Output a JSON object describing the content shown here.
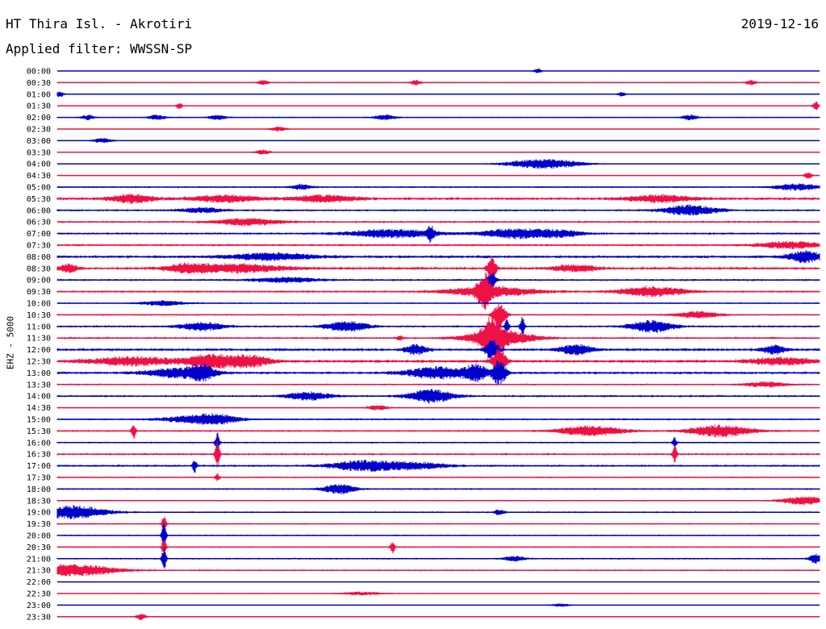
{
  "header": {
    "title": "HT Thira Isl. - Akrotiri",
    "date": "2019-12-16",
    "filter": "Applied filter: WWSSN-SP"
  },
  "chart_data": {
    "type": "line",
    "title": "HT Thira Isl. - Akrotiri",
    "subtitle": "Applied filter: WWSSN-SP",
    "ylabel": "EHZ - 5000",
    "xlabel": "",
    "colors": [
      "#0000cc",
      "#ee1144"
    ],
    "series": [
      {
        "label": "00:00",
        "noise": 0.3,
        "events": [
          {
            "x": 0.63,
            "amp": 3,
            "w": 0.004
          }
        ]
      },
      {
        "label": "00:30",
        "noise": 0.7,
        "events": [
          {
            "x": 0.27,
            "amp": 3,
            "w": 0.005
          },
          {
            "x": 0.47,
            "amp": 3,
            "w": 0.005
          },
          {
            "x": 0.91,
            "amp": 3,
            "w": 0.005
          }
        ]
      },
      {
        "label": "01:00",
        "noise": 0.3,
        "events": [
          {
            "x": 0.003,
            "amp": 4,
            "w": 0.004
          },
          {
            "x": 0.74,
            "amp": 3,
            "w": 0.004
          }
        ]
      },
      {
        "label": "01:30",
        "noise": 0.4,
        "events": [
          {
            "x": 0.16,
            "amp": 4,
            "w": 0.003
          },
          {
            "x": 0.995,
            "amp": 6,
            "w": 0.003
          }
        ]
      },
      {
        "label": "02:00",
        "noise": 0.9,
        "events": [
          {
            "x": 0.04,
            "amp": 3,
            "w": 0.006
          },
          {
            "x": 0.13,
            "amp": 3,
            "w": 0.008
          },
          {
            "x": 0.21,
            "amp": 3,
            "w": 0.008
          },
          {
            "x": 0.43,
            "amp": 3,
            "w": 0.01
          },
          {
            "x": 0.83,
            "amp": 3,
            "w": 0.008
          }
        ]
      },
      {
        "label": "02:30",
        "noise": 0.4,
        "events": [
          {
            "x": 0.29,
            "amp": 3,
            "w": 0.008
          }
        ]
      },
      {
        "label": "03:00",
        "noise": 0.4,
        "events": [
          {
            "x": 0.06,
            "amp": 3,
            "w": 0.01
          }
        ]
      },
      {
        "label": "03:30",
        "noise": 0.5,
        "events": [
          {
            "x": 0.27,
            "amp": 3,
            "w": 0.008
          }
        ]
      },
      {
        "label": "04:00",
        "noise": 0.5,
        "events": [
          {
            "x": 0.64,
            "amp": 6,
            "w": 0.035
          }
        ]
      },
      {
        "label": "04:30",
        "noise": 0.5,
        "events": [
          {
            "x": 0.985,
            "amp": 4,
            "w": 0.004
          }
        ]
      },
      {
        "label": "05:00",
        "noise": 1.2,
        "events": [
          {
            "x": 0.32,
            "amp": 3,
            "w": 0.01
          },
          {
            "x": 0.97,
            "amp": 4,
            "w": 0.02
          }
        ]
      },
      {
        "label": "05:30",
        "noise": 2.0,
        "events": [
          {
            "x": 0.1,
            "amp": 5,
            "w": 0.02
          },
          {
            "x": 0.22,
            "amp": 4,
            "w": 0.03
          },
          {
            "x": 0.35,
            "amp": 4,
            "w": 0.03
          },
          {
            "x": 0.79,
            "amp": 4,
            "w": 0.03
          }
        ]
      },
      {
        "label": "06:00",
        "noise": 1.5,
        "events": [
          {
            "x": 0.83,
            "amp": 6,
            "w": 0.025
          },
          {
            "x": 0.19,
            "amp": 3,
            "w": 0.02
          }
        ]
      },
      {
        "label": "06:30",
        "noise": 1.5,
        "events": [
          {
            "x": 0.25,
            "amp": 4,
            "w": 0.03
          }
        ]
      },
      {
        "label": "07:00",
        "noise": 1.5,
        "events": [
          {
            "x": 0.44,
            "amp": 5,
            "w": 0.04
          },
          {
            "x": 0.49,
            "amp": 9,
            "w": 0.003
          },
          {
            "x": 0.6,
            "amp": 6,
            "w": 0.03
          },
          {
            "x": 0.66,
            "amp": 4,
            "w": 0.02
          }
        ]
      },
      {
        "label": "07:30",
        "noise": 1.5,
        "events": [
          {
            "x": 0.96,
            "amp": 4,
            "w": 0.03
          }
        ]
      },
      {
        "label": "08:00",
        "noise": 2.0,
        "events": [
          {
            "x": 0.28,
            "amp": 4,
            "w": 0.04
          },
          {
            "x": 0.98,
            "amp": 7,
            "w": 0.015
          }
        ]
      },
      {
        "label": "08:30",
        "noise": 2.0,
        "events": [
          {
            "x": 0.015,
            "amp": 5,
            "w": 0.008
          },
          {
            "x": 0.17,
            "amp": 5,
            "w": 0.02
          },
          {
            "x": 0.24,
            "amp": 5,
            "w": 0.04
          },
          {
            "x": 0.68,
            "amp": 4,
            "w": 0.02
          },
          {
            "x": 0.57,
            "amp": 14,
            "w": 0.004
          }
        ]
      },
      {
        "label": "09:00",
        "noise": 1.5,
        "events": [
          {
            "x": 0.3,
            "amp": 3,
            "w": 0.03
          },
          {
            "x": 0.57,
            "amp": 10,
            "w": 0.004
          }
        ]
      },
      {
        "label": "09:30",
        "noise": 1.5,
        "events": [
          {
            "x": 0.56,
            "amp": 18,
            "w": 0.006
          },
          {
            "x": 0.57,
            "amp": 6,
            "w": 0.04
          },
          {
            "x": 0.78,
            "amp": 6,
            "w": 0.03
          }
        ]
      },
      {
        "label": "10:00",
        "noise": 1.0,
        "events": [
          {
            "x": 0.14,
            "amp": 3,
            "w": 0.02
          }
        ]
      },
      {
        "label": "10:30",
        "noise": 1.2,
        "events": [
          {
            "x": 0.84,
            "amp": 4,
            "w": 0.02
          },
          {
            "x": 0.58,
            "amp": 14,
            "w": 0.006
          }
        ]
      },
      {
        "label": "11:00",
        "noise": 1.5,
        "events": [
          {
            "x": 0.19,
            "amp": 5,
            "w": 0.02
          },
          {
            "x": 0.38,
            "amp": 6,
            "w": 0.02
          },
          {
            "x": 0.78,
            "amp": 7,
            "w": 0.02
          },
          {
            "x": 0.59,
            "amp": 9,
            "w": 0.002
          },
          {
            "x": 0.61,
            "amp": 12,
            "w": 0.002
          }
        ]
      },
      {
        "label": "11:30",
        "noise": 1.5,
        "events": [
          {
            "x": 0.57,
            "amp": 22,
            "w": 0.008
          },
          {
            "x": 0.58,
            "amp": 10,
            "w": 0.03
          },
          {
            "x": 0.45,
            "amp": 3,
            "w": 0.003
          }
        ]
      },
      {
        "label": "12:00",
        "noise": 2.0,
        "events": [
          {
            "x": 0.47,
            "amp": 6,
            "w": 0.01
          },
          {
            "x": 0.57,
            "amp": 12,
            "w": 0.006
          },
          {
            "x": 0.68,
            "amp": 6,
            "w": 0.015
          },
          {
            "x": 0.94,
            "amp": 5,
            "w": 0.01
          }
        ]
      },
      {
        "label": "12:30",
        "noise": 2.2,
        "events": [
          {
            "x": 0.1,
            "amp": 5,
            "w": 0.04
          },
          {
            "x": 0.2,
            "amp": 8,
            "w": 0.02
          },
          {
            "x": 0.25,
            "amp": 7,
            "w": 0.02
          },
          {
            "x": 0.58,
            "amp": 16,
            "w": 0.006
          },
          {
            "x": 0.95,
            "amp": 4,
            "w": 0.03
          }
        ]
      },
      {
        "label": "13:00",
        "noise": 1.8,
        "events": [
          {
            "x": 0.16,
            "amp": 6,
            "w": 0.03
          },
          {
            "x": 0.19,
            "amp": 8,
            "w": 0.01
          },
          {
            "x": 0.5,
            "amp": 7,
            "w": 0.03
          },
          {
            "x": 0.55,
            "amp": 9,
            "w": 0.01
          },
          {
            "x": 0.58,
            "amp": 16,
            "w": 0.006
          }
        ]
      },
      {
        "label": "13:30",
        "noise": 1.2,
        "events": [
          {
            "x": 0.93,
            "amp": 3,
            "w": 0.02
          }
        ]
      },
      {
        "label": "14:00",
        "noise": 1.5,
        "events": [
          {
            "x": 0.33,
            "amp": 5,
            "w": 0.02
          },
          {
            "x": 0.49,
            "amp": 8,
            "w": 0.02
          }
        ]
      },
      {
        "label": "14:30",
        "noise": 0.8,
        "events": [
          {
            "x": 0.42,
            "amp": 3,
            "w": 0.01
          }
        ]
      },
      {
        "label": "15:00",
        "noise": 1.3,
        "events": [
          {
            "x": 0.18,
            "amp": 4,
            "w": 0.03
          },
          {
            "x": 0.21,
            "amp": 4,
            "w": 0.02
          }
        ]
      },
      {
        "label": "15:30",
        "noise": 1.3,
        "events": [
          {
            "x": 0.1,
            "amp": 10,
            "w": 0.002
          },
          {
            "x": 0.7,
            "amp": 6,
            "w": 0.03
          },
          {
            "x": 0.87,
            "amp": 7,
            "w": 0.03
          }
        ]
      },
      {
        "label": "16:00",
        "noise": 1.2,
        "events": [
          {
            "x": 0.21,
            "amp": 12,
            "w": 0.002
          },
          {
            "x": 0.81,
            "amp": 6,
            "w": 0.002
          }
        ]
      },
      {
        "label": "16:30",
        "noise": 1.5,
        "events": [
          {
            "x": 0.21,
            "amp": 18,
            "w": 0.002
          },
          {
            "x": 0.81,
            "amp": 10,
            "w": 0.002
          }
        ]
      },
      {
        "label": "17:00",
        "noise": 1.5,
        "events": [
          {
            "x": 0.18,
            "amp": 8,
            "w": 0.002
          },
          {
            "x": 0.4,
            "amp": 6,
            "w": 0.03
          },
          {
            "x": 0.47,
            "amp": 4,
            "w": 0.03
          }
        ]
      },
      {
        "label": "17:30",
        "noise": 1.0,
        "events": [
          {
            "x": 0.21,
            "amp": 5,
            "w": 0.002
          }
        ]
      },
      {
        "label": "18:00",
        "noise": 1.2,
        "events": [
          {
            "x": 0.37,
            "amp": 6,
            "w": 0.015
          }
        ]
      },
      {
        "label": "18:30",
        "noise": 1.0,
        "events": [
          {
            "x": 0.98,
            "amp": 5,
            "w": 0.02
          }
        ]
      },
      {
        "label": "19:00",
        "noise": 1.2,
        "events": [
          {
            "x": 0.02,
            "amp": 8,
            "w": 0.03
          },
          {
            "x": 0.58,
            "amp": 3,
            "w": 0.005
          }
        ]
      },
      {
        "label": "19:30",
        "noise": 1.0,
        "events": [
          {
            "x": 0.14,
            "amp": 10,
            "w": 0.002
          }
        ]
      },
      {
        "label": "20:00",
        "noise": 1.0,
        "events": [
          {
            "x": 0.14,
            "amp": 16,
            "w": 0.002
          }
        ]
      },
      {
        "label": "20:30",
        "noise": 1.0,
        "events": [
          {
            "x": 0.14,
            "amp": 12,
            "w": 0.002
          },
          {
            "x": 0.44,
            "amp": 8,
            "w": 0.002
          }
        ]
      },
      {
        "label": "21:00",
        "noise": 1.2,
        "events": [
          {
            "x": 0.14,
            "amp": 14,
            "w": 0.002
          },
          {
            "x": 0.6,
            "amp": 3,
            "w": 0.01
          },
          {
            "x": 0.995,
            "amp": 6,
            "w": 0.006
          }
        ]
      },
      {
        "label": "21:30",
        "noise": 1.2,
        "events": [
          {
            "x": 0.02,
            "amp": 7,
            "w": 0.04
          }
        ]
      },
      {
        "label": "22:00",
        "noise": 0.4,
        "events": []
      },
      {
        "label": "22:30",
        "noise": 0.7,
        "events": [
          {
            "x": 0.4,
            "amp": 2,
            "w": 0.02
          }
        ]
      },
      {
        "label": "23:00",
        "noise": 0.4,
        "events": [
          {
            "x": 0.66,
            "amp": 2,
            "w": 0.01
          }
        ]
      },
      {
        "label": "23:30",
        "noise": 0.4,
        "events": [
          {
            "x": 0.11,
            "amp": 4,
            "w": 0.005
          }
        ]
      }
    ]
  }
}
